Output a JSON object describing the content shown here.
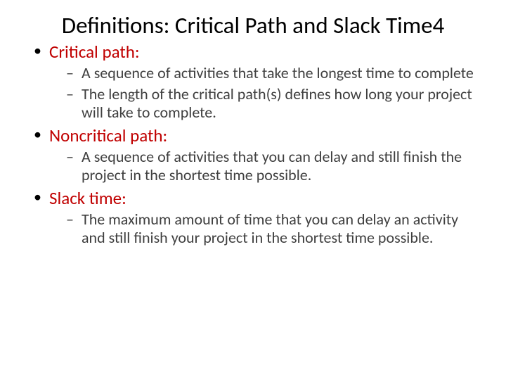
{
  "colors": {
    "term": "#c00000",
    "body": "#3f3f3f",
    "title": "#000000",
    "background": "#ffffff"
  },
  "typography": {
    "title_fontsize": 33,
    "term_fontsize": 25,
    "sub_fontsize": 22,
    "font_family": "Calibri"
  },
  "title": "Definitions: Critical Path and Slack Time4",
  "items": [
    {
      "term": "Critical path:",
      "subs": [
        "A sequence of activities that take the longest time to complete",
        "The length of the critical path(s) defines how long your project will take to complete."
      ]
    },
    {
      "term": "Noncritical path:",
      "subs": [
        "A sequence of activities that you can delay and still finish the project in the shortest time possible."
      ]
    },
    {
      "term": "Slack time:",
      "subs": [
        "The maximum amount of time that you can delay an activity and still finish your project in the shortest time possible."
      ]
    }
  ]
}
